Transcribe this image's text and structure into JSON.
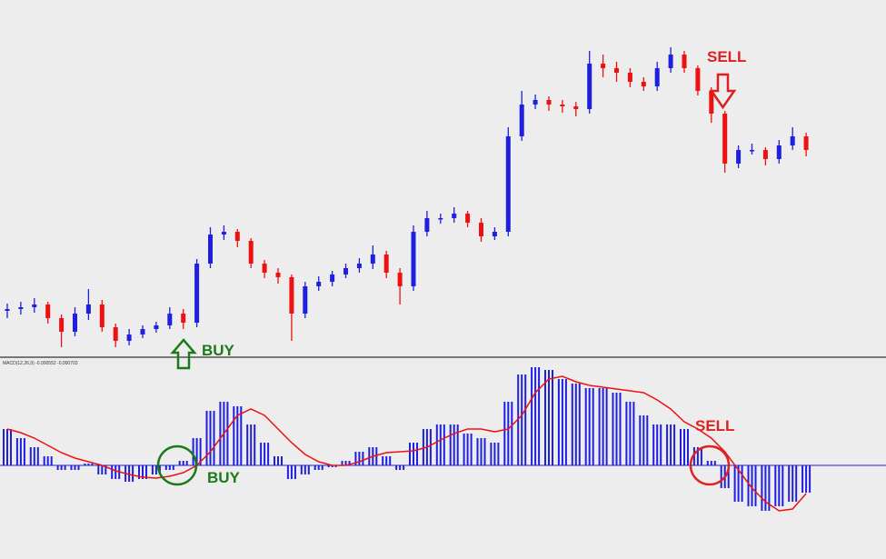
{
  "chart_data": [
    {
      "type": "candlestick",
      "up_color": "#1f1fe0",
      "down_color": "#ee1111",
      "ylim": [
        0,
        360
      ],
      "open": [
        48,
        50,
        52,
        55,
        40,
        25,
        45,
        55,
        30,
        15,
        22,
        28,
        32,
        45,
        35,
        100,
        132,
        135,
        125,
        100,
        90,
        85,
        45,
        75,
        80,
        88,
        95,
        100,
        110,
        90,
        75,
        135,
        150,
        150,
        155,
        145,
        130,
        135,
        240,
        275,
        280,
        275,
        273,
        270,
        320,
        315,
        310,
        300,
        295,
        315,
        330,
        315,
        290,
        265,
        210,
        225,
        225,
        215,
        230,
        240
      ],
      "close": [
        50,
        52,
        55,
        40,
        25,
        45,
        55,
        30,
        15,
        22,
        28,
        32,
        45,
        35,
        100,
        132,
        135,
        125,
        100,
        90,
        85,
        45,
        75,
        80,
        88,
        95,
        100,
        110,
        90,
        75,
        135,
        150,
        150,
        155,
        145,
        130,
        135,
        240,
        275,
        280,
        275,
        273,
        270,
        320,
        315,
        310,
        300,
        295,
        315,
        330,
        315,
        290,
        265,
        210,
        225,
        225,
        215,
        230,
        240,
        225
      ],
      "high": [
        56,
        58,
        62,
        58,
        44,
        52,
        72,
        60,
        34,
        28,
        32,
        36,
        52,
        50,
        105,
        140,
        142,
        138,
        128,
        104,
        95,
        88,
        80,
        86,
        92,
        100,
        106,
        120,
        114,
        95,
        142,
        158,
        155,
        162,
        158,
        150,
        140,
        250,
        290,
        286,
        284,
        280,
        278,
        334,
        330,
        322,
        315,
        305,
        322,
        338,
        334,
        318,
        294,
        268,
        230,
        232,
        228,
        236,
        250,
        244
      ],
      "low": [
        40,
        44,
        46,
        34,
        8,
        20,
        38,
        25,
        8,
        10,
        18,
        24,
        28,
        28,
        30,
        95,
        126,
        118,
        95,
        84,
        78,
        15,
        40,
        70,
        75,
        84,
        90,
        94,
        84,
        55,
        70,
        130,
        144,
        145,
        140,
        124,
        126,
        130,
        235,
        270,
        268,
        266,
        262,
        265,
        305,
        300,
        294,
        290,
        290,
        310,
        310,
        285,
        255,
        200,
        205,
        220,
        208,
        210,
        225,
        218
      ],
      "annotations": [
        {
          "text": "BUY",
          "color": "#1a7a1a"
        },
        {
          "text": "SELL",
          "color": "#e02020"
        }
      ]
    },
    {
      "type": "macd",
      "label": "MACD(12,26,9) -0.000552 -0.000703",
      "ylim": [
        -60,
        115
      ],
      "histogram": {
        "color": "#1f1fe0",
        "values": [
          40,
          30,
          20,
          10,
          -5,
          -5,
          2,
          -10,
          -15,
          -18,
          -15,
          -10,
          -5,
          5,
          30,
          60,
          70,
          65,
          45,
          25,
          10,
          -15,
          -10,
          -5,
          -2,
          5,
          15,
          20,
          10,
          -5,
          25,
          40,
          45,
          45,
          35,
          30,
          25,
          70,
          100,
          108,
          105,
          95,
          90,
          85,
          85,
          80,
          70,
          55,
          45,
          45,
          40,
          20,
          5,
          -25,
          -40,
          -45,
          -50,
          -45,
          -40,
          -30
        ]
      },
      "signal": {
        "color": "#ee1111",
        "values": [
          40,
          36,
          30,
          22,
          14,
          8,
          4,
          0,
          -6,
          -10,
          -13,
          -14,
          -12,
          -8,
          0,
          15,
          35,
          55,
          62,
          55,
          40,
          25,
          12,
          4,
          0,
          0,
          4,
          10,
          14,
          15,
          16,
          20,
          28,
          35,
          40,
          40,
          37,
          40,
          55,
          80,
          95,
          98,
          92,
          88,
          86,
          84,
          82,
          80,
          72,
          62,
          48,
          40,
          30,
          15,
          -5,
          -25,
          -40,
          -50,
          -48,
          -31
        ]
      },
      "annotations": [
        {
          "text": "SELL",
          "color": "#e02020"
        },
        {
          "text": "BUY",
          "color": "#1a7a1a"
        }
      ]
    }
  ]
}
